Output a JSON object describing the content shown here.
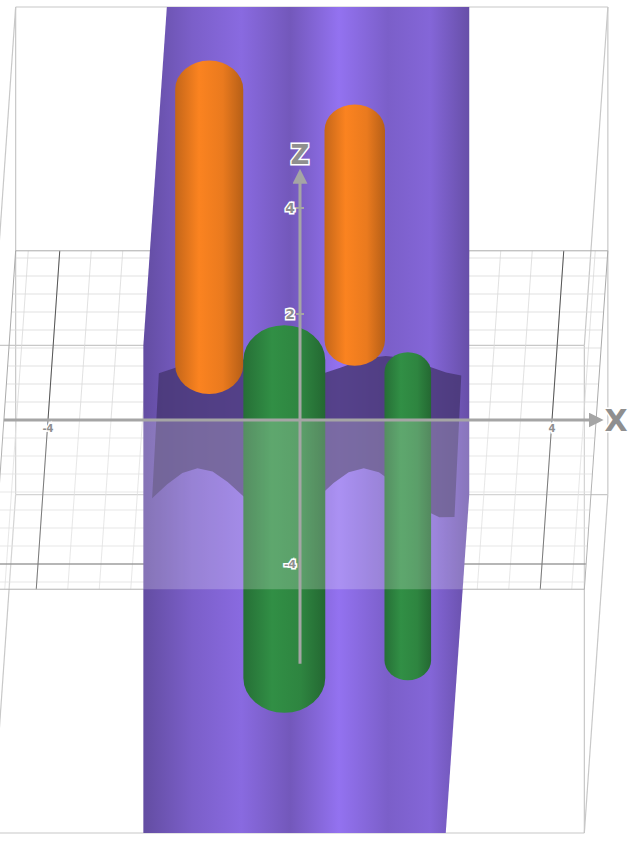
{
  "chart_data": {
    "type": "surface3d",
    "x_label": "X",
    "z_label": "Z",
    "xlim": [
      -4.7,
      4.7
    ],
    "ylim": [
      -4.7,
      4.7
    ],
    "zlim": [
      -4.6,
      4.6
    ],
    "xticks": [
      -4,
      4
    ],
    "yticks": [
      -4
    ],
    "zticks": [
      2,
      4
    ],
    "grid": true,
    "series": [
      {
        "type": "band",
        "color": "#7b5fc9",
        "x": [
          -2.3,
          2.5
        ],
        "y": [
          -4.7,
          4.7
        ],
        "z": [
          -4.6,
          4.6
        ]
      },
      {
        "type": "capsule",
        "color": "#ea7a1e",
        "x": -1.56,
        "y": 3,
        "radius": 0.54,
        "z": [
          -1.0,
          4.2
        ]
      },
      {
        "type": "capsule",
        "color": "#ea7a1e",
        "x": 0.75,
        "y": 3,
        "radius": 0.48,
        "z": [
          -0.53,
          3.43
        ]
      },
      {
        "type": "capsule",
        "color": "#2e8540",
        "x": -0.13,
        "y": -3,
        "radius": 0.65,
        "z": [
          -2.83,
          3.17
        ]
      },
      {
        "type": "capsule",
        "color": "#2e8540",
        "x": 1.83,
        "y": -3,
        "radius": 0.37,
        "z": [
          -2.5,
          2.94
        ]
      }
    ]
  }
}
